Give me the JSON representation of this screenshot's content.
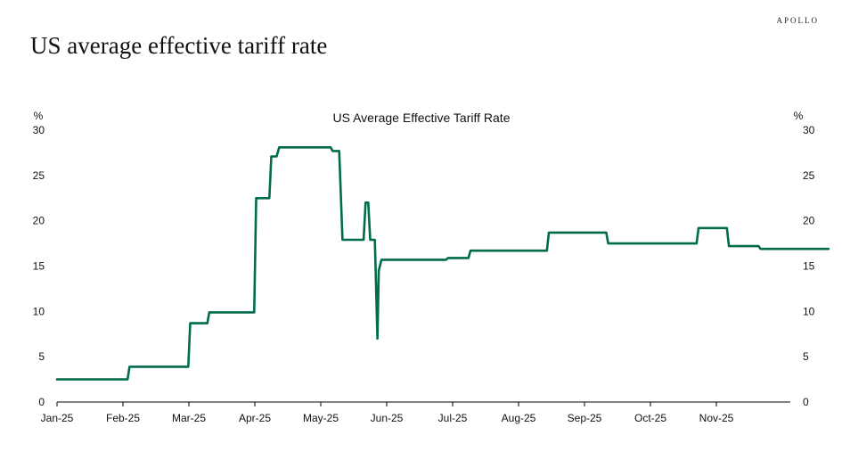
{
  "header": {
    "brand": "APOLLO",
    "title": "US average effective tariff rate"
  },
  "colors": {
    "line": "#006b4d",
    "axis": "#000000",
    "text": "#111111"
  },
  "chart_data": {
    "type": "line",
    "title": "US Average Effective Tariff Rate",
    "ylabel_left": "%",
    "ylabel_right": "%",
    "ylim": [
      0,
      30
    ],
    "yticks": [
      0,
      5,
      10,
      15,
      20,
      25,
      30
    ],
    "xlim": [
      0,
      11.8
    ],
    "xticks": [
      {
        "pos": 0,
        "label": "Jan-25"
      },
      {
        "pos": 1,
        "label": "Feb-25"
      },
      {
        "pos": 2,
        "label": "Mar-25"
      },
      {
        "pos": 3,
        "label": "Apr-25"
      },
      {
        "pos": 4,
        "label": "May-25"
      },
      {
        "pos": 5,
        "label": "Jun-25"
      },
      {
        "pos": 6,
        "label": "Jul-25"
      },
      {
        "pos": 7,
        "label": "Aug-25"
      },
      {
        "pos": 8,
        "label": "Sep-25"
      },
      {
        "pos": 9,
        "label": "Oct-25"
      },
      {
        "pos": 10,
        "label": "Nov-25"
      }
    ],
    "series": [
      {
        "name": "US Average Effective Tariff Rate",
        "x": [
          0,
          1.07,
          1.1,
          1.99,
          2.02,
          2.28,
          2.31,
          2.99,
          3.02,
          3.22,
          3.25,
          3.33,
          3.37,
          4.15,
          4.18,
          4.28,
          4.33,
          4.65,
          4.68,
          4.72,
          4.75,
          4.82,
          4.86,
          4.88,
          4.92,
          5.9,
          5.93,
          6.24,
          6.27,
          7.43,
          7.46,
          8.33,
          8.36,
          9.7,
          9.73,
          10.16,
          10.19,
          10.64,
          10.67,
          11.7
        ],
        "values": [
          2.5,
          2.5,
          3.9,
          3.9,
          8.7,
          8.7,
          9.9,
          9.9,
          22.5,
          22.5,
          27.1,
          27.1,
          28.1,
          28.1,
          27.7,
          27.7,
          17.9,
          17.9,
          22.0,
          22.0,
          17.9,
          17.9,
          7.0,
          14.5,
          15.7,
          15.7,
          15.9,
          15.9,
          16.7,
          16.7,
          18.7,
          18.7,
          17.5,
          17.5,
          19.2,
          19.2,
          17.2,
          17.2,
          16.9,
          16.9
        ]
      }
    ]
  }
}
